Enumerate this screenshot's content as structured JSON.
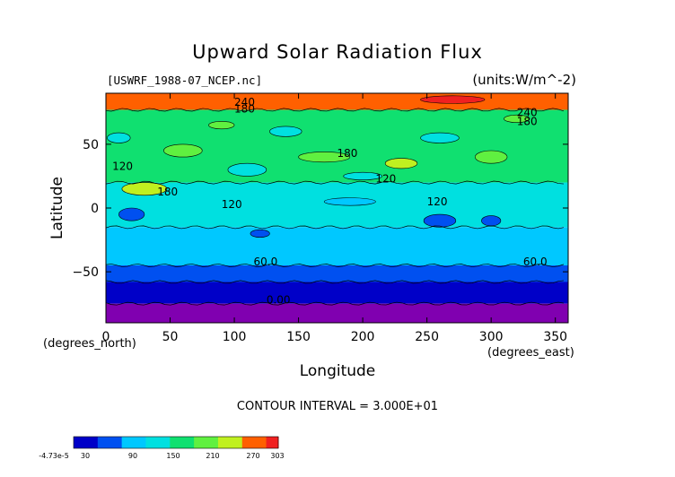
{
  "chart_data": {
    "type": "heatmap",
    "title": "Upward Solar Radiation Flux",
    "file_label": "[USWRF_1988-07_NCEP.nc]",
    "units_label": "(units:W/m^-2)",
    "xlabel": "Longitude",
    "ylabel": "Latitude",
    "x_unit_label": "(degrees_east)",
    "y_unit_label": "(degrees_north)",
    "xlim": [
      0,
      360
    ],
    "ylim": [
      -90,
      90
    ],
    "x_ticks": [
      0,
      50,
      100,
      150,
      200,
      250,
      300,
      350
    ],
    "y_ticks": [
      50,
      0,
      -50
    ],
    "contour_interval_text": "CONTOUR INTERVAL = 3.000E+01",
    "contour_labels": [
      "240",
      "180",
      "120",
      "180",
      "120",
      "180",
      "120",
      "120",
      "60.0",
      "60.0",
      "0.00",
      "240",
      "180"
    ],
    "colorbar": {
      "tick_labels": [
        "-4.73e-5",
        "30",
        "90",
        "150",
        "210",
        "270",
        "303"
      ],
      "min": -4.73e-05,
      "max": 303
    },
    "latitude_bands": [
      {
        "lat_range": [
          77,
          90
        ],
        "value": 255
      },
      {
        "lat_range": [
          20,
          77
        ],
        "value": 155
      },
      {
        "lat_range": [
          -15,
          20
        ],
        "value": 120
      },
      {
        "lat_range": [
          -45,
          -15
        ],
        "value": 95
      },
      {
        "lat_range": [
          -58,
          -45
        ],
        "value": 55
      },
      {
        "lat_range": [
          -75,
          -58
        ],
        "value": 25
      },
      {
        "lat_range": [
          -90,
          -75
        ],
        "value": 0
      }
    ]
  },
  "colors": {
    "purple": "#8000b0",
    "darkblue": "#0000c8",
    "blue": "#0050f0",
    "lightblue": "#00c8ff",
    "cyan": "#00e0e0",
    "green": "#10e070",
    "lightgreen": "#60f040",
    "yellowgreen": "#c0f020",
    "orange": "#ff6000",
    "red": "#f02020"
  }
}
